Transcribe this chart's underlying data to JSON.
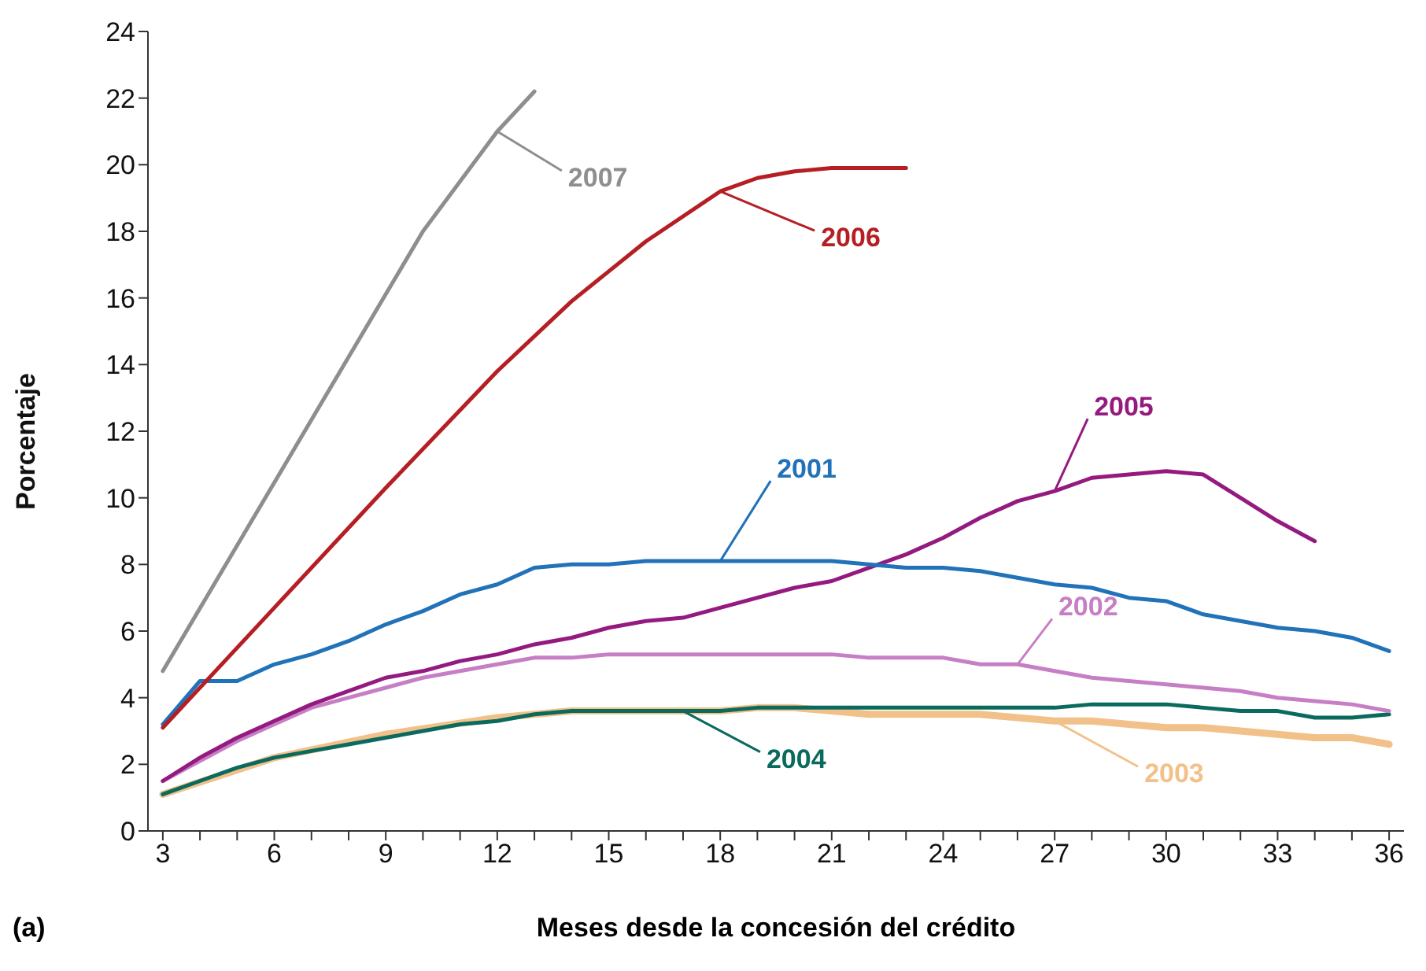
{
  "chart_data": {
    "type": "line",
    "xlabel": "Meses desde la concesión del crédito",
    "ylabel": "Porcentaje",
    "annotations": [
      "(a)"
    ],
    "xlim": [
      2.6,
      36.4
    ],
    "ylim": [
      0,
      24
    ],
    "yticks": [
      0,
      2,
      4,
      6,
      8,
      10,
      12,
      14,
      16,
      18,
      20,
      22,
      24
    ],
    "xticks": [
      3,
      {
        "value": 4,
        "label": null
      },
      {
        "value": 5,
        "label": null
      },
      6,
      {
        "value": 7,
        "label": null
      },
      {
        "value": 8,
        "label": null
      },
      9,
      {
        "value": 10,
        "label": null
      },
      {
        "value": 11,
        "label": null
      },
      12,
      {
        "value": 13,
        "label": null
      },
      {
        "value": 14,
        "label": null
      },
      15,
      {
        "value": 16,
        "label": null
      },
      {
        "value": 17,
        "label": null
      },
      18,
      {
        "value": 19,
        "label": null
      },
      {
        "value": 20,
        "label": null
      },
      21,
      {
        "value": 22,
        "label": null
      },
      {
        "value": 23,
        "label": null
      },
      24,
      {
        "value": 25,
        "label": null
      },
      {
        "value": 26,
        "label": null
      },
      27,
      {
        "value": 28,
        "label": null
      },
      {
        "value": 29,
        "label": null
      },
      30,
      {
        "value": 31,
        "label": null
      },
      {
        "value": 32,
        "label": null
      },
      33,
      {
        "value": 34,
        "label": null
      },
      {
        "value": 35,
        "label": null
      },
      36
    ],
    "marker": "none",
    "line_style": "solid",
    "series": [
      {
        "name": "2003",
        "color": "#f2c18a",
        "x": [
          3,
          6,
          9,
          12,
          14,
          16,
          18,
          19,
          20,
          21,
          22,
          23,
          24,
          25,
          26,
          27,
          28,
          29,
          30,
          31,
          32,
          33,
          34,
          35,
          36
        ],
        "values": [
          1.1,
          2.2,
          2.9,
          3.4,
          3.6,
          3.6,
          3.6,
          3.7,
          3.7,
          3.6,
          3.5,
          3.5,
          3.5,
          3.5,
          3.4,
          3.3,
          3.3,
          3.2,
          3.1,
          3.1,
          3.0,
          2.9,
          2.8,
          2.8,
          2.6
        ]
      },
      {
        "name": "2004",
        "color": "#0b6a5e",
        "x": [
          3,
          4,
          5,
          6,
          7,
          8,
          9,
          10,
          11,
          12,
          13,
          14,
          15,
          16,
          17,
          18,
          19,
          20,
          21,
          22,
          23,
          24,
          25,
          26,
          27,
          28,
          29,
          30,
          31,
          32,
          33,
          34,
          35,
          36
        ],
        "values": [
          1.1,
          1.5,
          1.9,
          2.2,
          2.4,
          2.6,
          2.8,
          3.0,
          3.2,
          3.3,
          3.5,
          3.6,
          3.6,
          3.6,
          3.6,
          3.6,
          3.7,
          3.7,
          3.7,
          3.7,
          3.7,
          3.7,
          3.7,
          3.7,
          3.7,
          3.8,
          3.8,
          3.8,
          3.7,
          3.6,
          3.6,
          3.4,
          3.4,
          3.5
        ]
      },
      {
        "name": "2002",
        "color": "#c67fc4",
        "x": [
          3,
          4,
          5,
          6,
          7,
          8,
          9,
          10,
          11,
          12,
          13,
          14,
          15,
          16,
          17,
          18,
          19,
          20,
          21,
          22,
          23,
          24,
          25,
          26,
          27,
          28,
          29,
          30,
          31,
          32,
          33,
          34,
          35,
          36
        ],
        "values": [
          1.5,
          2.1,
          2.7,
          3.2,
          3.7,
          4.0,
          4.3,
          4.6,
          4.8,
          5.0,
          5.2,
          5.2,
          5.3,
          5.3,
          5.3,
          5.3,
          5.3,
          5.3,
          5.3,
          5.2,
          5.2,
          5.2,
          5.0,
          5.0,
          4.8,
          4.6,
          4.5,
          4.4,
          4.3,
          4.2,
          4.0,
          3.9,
          3.8,
          3.6
        ]
      },
      {
        "name": "2005",
        "color": "#951a80",
        "x": [
          3,
          4,
          5,
          6,
          7,
          8,
          9,
          10,
          11,
          12,
          13,
          14,
          15,
          16,
          17,
          18,
          19,
          20,
          21,
          22,
          23,
          24,
          25,
          26,
          27,
          28,
          29,
          30,
          31,
          32,
          33,
          34
        ],
        "values": [
          1.5,
          2.2,
          2.8,
          3.3,
          3.8,
          4.2,
          4.6,
          4.8,
          5.1,
          5.3,
          5.6,
          5.8,
          6.1,
          6.3,
          6.4,
          6.7,
          7.0,
          7.3,
          7.5,
          7.9,
          8.3,
          8.8,
          9.4,
          9.9,
          10.2,
          10.6,
          10.7,
          10.8,
          10.7,
          10.0,
          9.3,
          8.7
        ]
      },
      {
        "name": "2001",
        "color": "#2172b8",
        "x": [
          3,
          4,
          5,
          6,
          7,
          8,
          9,
          10,
          11,
          12,
          13,
          14,
          15,
          16,
          17,
          18,
          19,
          20,
          21,
          22,
          23,
          24,
          25,
          26,
          27,
          28,
          29,
          30,
          31,
          32,
          33,
          34,
          35,
          36
        ],
        "values": [
          3.2,
          4.5,
          4.5,
          5.0,
          5.3,
          5.7,
          6.2,
          6.6,
          7.1,
          7.4,
          7.9,
          8.0,
          8.0,
          8.1,
          8.1,
          8.1,
          8.1,
          8.1,
          8.1,
          8.0,
          7.9,
          7.9,
          7.8,
          7.6,
          7.4,
          7.3,
          7.0,
          6.9,
          6.5,
          6.3,
          6.1,
          6.0,
          5.8,
          5.4
        ]
      },
      {
        "name": "2006",
        "color": "#b51f24",
        "x": [
          3,
          6,
          9,
          12,
          14,
          16,
          18,
          19,
          20,
          21,
          23
        ],
        "values": [
          3.1,
          6.7,
          10.3,
          13.8,
          15.9,
          17.7,
          19.2,
          19.6,
          19.8,
          19.9,
          19.9
        ]
      },
      {
        "name": "2007",
        "color": "#8e8e8e",
        "x": [
          3,
          10,
          12,
          13
        ],
        "values": [
          4.8,
          18.0,
          21.0,
          22.2
        ]
      }
    ]
  }
}
